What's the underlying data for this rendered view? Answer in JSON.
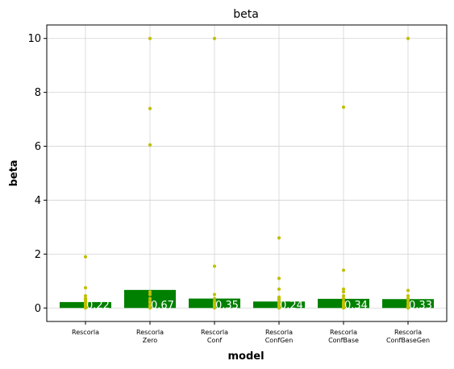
{
  "chart_data": {
    "type": "bar",
    "title": "beta",
    "xlabel": "model",
    "ylabel": "beta",
    "categories": [
      [
        "Rescorla"
      ],
      [
        "Rescorla",
        "Zero"
      ],
      [
        "Rescorla",
        "Conf"
      ],
      [
        "Rescorla",
        "ConfGen"
      ],
      [
        "Rescorla",
        "ConfBase"
      ],
      [
        "Rescorla",
        "ConfBaseGen"
      ]
    ],
    "values": [
      0.22,
      0.67,
      0.35,
      0.24,
      0.34,
      0.33
    ],
    "value_labels": [
      "0.22",
      "0.67",
      "0.35",
      "0.24",
      "0.34",
      "0.33"
    ],
    "points": [
      [
        1.9,
        0.75,
        0.45,
        0.35,
        0.3,
        0.25,
        0.2,
        0.15,
        0.1,
        0.05,
        0.0
      ],
      [
        10.0,
        7.4,
        6.05,
        0.6,
        0.5,
        0.35,
        0.25,
        0.2,
        0.1,
        0.05,
        0.0
      ],
      [
        10.0,
        1.55,
        0.5,
        0.35,
        0.25,
        0.2,
        0.15,
        0.1,
        0.05,
        0.0
      ],
      [
        2.6,
        1.1,
        0.7,
        0.4,
        0.35,
        0.3,
        0.2,
        0.15,
        0.1,
        0.05,
        0.0
      ],
      [
        7.45,
        1.4,
        0.7,
        0.6,
        0.45,
        0.35,
        0.25,
        0.2,
        0.15,
        0.1,
        0.05,
        0.0
      ],
      [
        10.0,
        0.65,
        0.45,
        0.35,
        0.3,
        0.2,
        0.1,
        0.05,
        0.0
      ]
    ],
    "ylim": [
      -0.5,
      10.5
    ],
    "yticks": [
      0,
      2,
      4,
      6,
      8,
      10
    ],
    "ytick_labels": [
      "0",
      "2",
      "4",
      "6",
      "8",
      "10"
    ],
    "grid": true,
    "colors": {
      "bar": "#008000",
      "points": "#bfbf00",
      "grid": "#d3d3d3",
      "value_label": "#ffffff"
    }
  }
}
